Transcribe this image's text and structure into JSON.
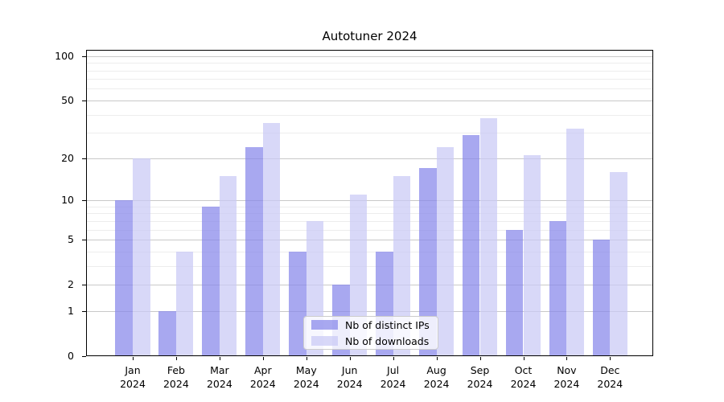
{
  "chart_data": {
    "type": "bar",
    "title": "Autotuner 2024",
    "categories": [
      "Jan",
      "Feb",
      "Mar",
      "Apr",
      "May",
      "Jun",
      "Jul",
      "Aug",
      "Sep",
      "Oct",
      "Nov",
      "Dec"
    ],
    "category_year": "2024",
    "series": [
      {
        "name": "Nb of distinct IPs",
        "color": "rgba(134,134,234,0.72)",
        "values": [
          10,
          1,
          9,
          24,
          4,
          2,
          4,
          17,
          29,
          6,
          7,
          5
        ]
      },
      {
        "name": "Nb of downloads",
        "color": "rgba(201,201,245,0.72)",
        "values": [
          20,
          4,
          15,
          35,
          7,
          11,
          15,
          24,
          38,
          21,
          32,
          16
        ]
      }
    ],
    "yscale": "log1p",
    "ylim": [
      0,
      110
    ],
    "y_major_ticks": [
      0,
      1,
      2,
      5,
      10,
      20,
      50,
      100
    ],
    "y_minor_ticks": [
      3,
      4,
      6,
      7,
      8,
      9,
      30,
      40,
      60,
      70,
      80,
      90
    ],
    "xlabel": "",
    "ylabel": "",
    "grid": true,
    "legend": {
      "position": "lower center",
      "entries": [
        "Nb of distinct IPs",
        "Nb of downloads"
      ]
    },
    "colors": {
      "major_grid": "#c9c9c9",
      "minor_grid": "#ededed",
      "spine": "#000000",
      "text": "#000000"
    }
  }
}
